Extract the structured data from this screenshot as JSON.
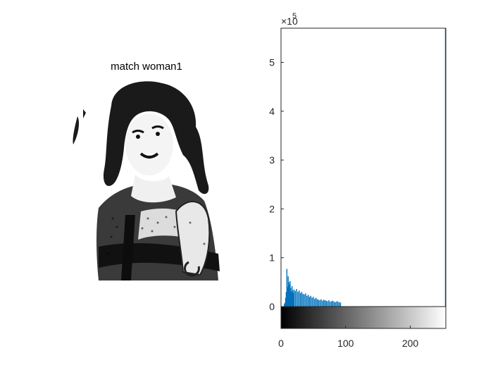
{
  "image_panel": {
    "title": "match woman1"
  },
  "chart_data": {
    "type": "bar",
    "title": "",
    "xlabel": "",
    "ylabel": "",
    "y_exponent_label": "×10",
    "y_exponent_power": "5",
    "xlim": [
      0,
      255
    ],
    "ylim": [
      0,
      5.7
    ],
    "y_ticks": [
      0,
      1,
      2,
      3,
      4,
      5
    ],
    "y_tick_labels": [
      "0",
      "1",
      "2",
      "3",
      "4",
      "5"
    ],
    "x_ticks": [
      0,
      100,
      200
    ],
    "x_tick_labels": [
      "0",
      "100",
      "200"
    ],
    "grid": false,
    "bar_color": "#0072BD",
    "series": [
      {
        "x": [
          5,
          6,
          7,
          8,
          9,
          10,
          11,
          12,
          13,
          14,
          15,
          16,
          17,
          18,
          19,
          20,
          22,
          24,
          26,
          28,
          30,
          32,
          34,
          36,
          38,
          40,
          42,
          44,
          46,
          48,
          50,
          52,
          54,
          56,
          58,
          60,
          62,
          64,
          66,
          68,
          70,
          72,
          74,
          76,
          78,
          80,
          82,
          84,
          86,
          88,
          90,
          92
        ],
        "values": [
          0.05,
          0.08,
          0.18,
          0.3,
          0.77,
          0.4,
          0.62,
          0.5,
          0.45,
          0.52,
          0.38,
          0.3,
          0.42,
          0.33,
          0.28,
          0.35,
          0.32,
          0.36,
          0.3,
          0.33,
          0.28,
          0.3,
          0.26,
          0.25,
          0.27,
          0.22,
          0.24,
          0.2,
          0.22,
          0.18,
          0.2,
          0.16,
          0.18,
          0.15,
          0.14,
          0.13,
          0.15,
          0.12,
          0.14,
          0.13,
          0.12,
          0.11,
          0.13,
          0.1,
          0.11,
          0.12,
          0.1,
          0.09,
          0.11,
          0.1,
          0.09,
          0.08
        ]
      }
    ],
    "end_spike": {
      "x": 255,
      "value": 5.7
    }
  }
}
